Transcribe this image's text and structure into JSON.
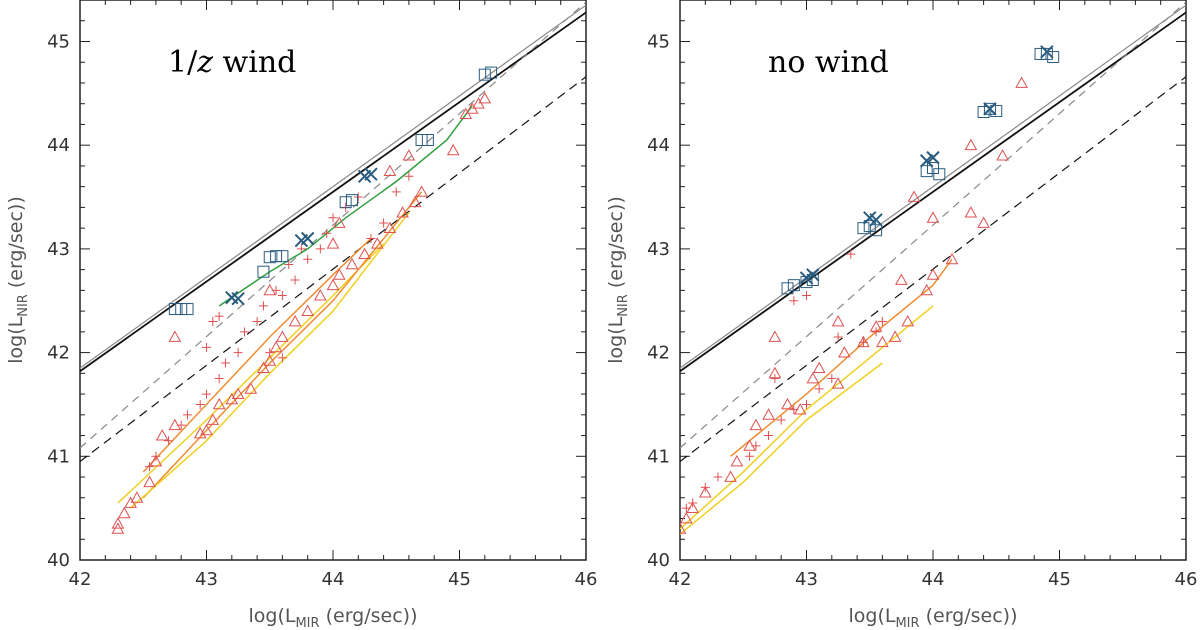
{
  "colors": {
    "frame": "#222222",
    "solid_line": "#111111",
    "solid_line_light": "#888888",
    "dashed_dark": "#111111",
    "dashed_light": "#888888",
    "triangle": "#e05050",
    "plus": "#e05050",
    "square": "#2a5c80",
    "cross": "#2a5c80",
    "orange": "#f08c30",
    "yellow": "#f0d020",
    "green": "#30a040"
  },
  "chart_data": [
    {
      "type": "scatter",
      "title": "1/z wind",
      "title_parts": {
        "prefix": "1/",
        "italic": "z",
        "suffix": " wind"
      },
      "xlabel": {
        "prefix": "log(L",
        "sub": "MIR",
        "suffix": " (erg/sec))"
      },
      "ylabel": {
        "prefix": "log(L",
        "sub": "NIR",
        "suffix": " (erg/sec))"
      },
      "xlim": [
        42,
        46
      ],
      "ylim": [
        40,
        45.4
      ],
      "xticks": [
        "42",
        "43",
        "44",
        "45",
        "46"
      ],
      "yticks": [
        "40",
        "41",
        "42",
        "43",
        "44",
        "45"
      ],
      "reference_lines": [
        {
          "name": "solid-black",
          "style": "solid",
          "color": "solid_line",
          "points": [
            [
              42,
              41.82
            ],
            [
              46,
              45.28
            ]
          ]
        },
        {
          "name": "solid-grey",
          "style": "solid",
          "color": "solid_line_light",
          "points": [
            [
              42,
              41.85
            ],
            [
              46,
              45.35
            ]
          ]
        },
        {
          "name": "dashed-grey",
          "style": "dashed",
          "color": "dashed_light",
          "points": [
            [
              42,
              41.08
            ],
            [
              46,
              45.38
            ]
          ]
        },
        {
          "name": "dashed-black",
          "style": "dashed",
          "color": "dashed_dark",
          "points": [
            [
              42,
              40.95
            ],
            [
              46,
              44.66
            ]
          ]
        }
      ],
      "curves": [
        {
          "name": "orange-upper",
          "color": "orange",
          "points": [
            [
              42.5,
              40.85
            ],
            [
              43.0,
              41.5
            ],
            [
              43.5,
              42.15
            ],
            [
              44.0,
              42.75
            ],
            [
              44.3,
              43.1
            ]
          ]
        },
        {
          "name": "yellow-upper",
          "color": "yellow",
          "points": [
            [
              42.3,
              40.55
            ],
            [
              43.0,
              41.35
            ],
            [
              43.5,
              41.95
            ],
            [
              44.0,
              42.55
            ],
            [
              44.4,
              43.05
            ]
          ]
        },
        {
          "name": "orange-lower",
          "color": "orange",
          "points": [
            [
              42.5,
              40.6
            ],
            [
              43.0,
              41.25
            ],
            [
              43.5,
              41.9
            ],
            [
              44.0,
              42.5
            ],
            [
              44.7,
              43.55
            ]
          ]
        },
        {
          "name": "yellow-lower",
          "color": "yellow",
          "points": [
            [
              42.4,
              40.5
            ],
            [
              43.0,
              41.15
            ],
            [
              43.5,
              41.8
            ],
            [
              44.0,
              42.4
            ],
            [
              44.6,
              43.35
            ]
          ]
        },
        {
          "name": "green",
          "color": "green",
          "points": [
            [
              43.1,
              42.45
            ],
            [
              43.5,
              42.78
            ],
            [
              43.8,
              43.0
            ],
            [
              44.1,
              43.3
            ],
            [
              44.5,
              43.65
            ],
            [
              44.9,
              44.05
            ],
            [
              45.1,
              44.38
            ]
          ]
        }
      ],
      "triangles": [
        [
          42.3,
          40.35
        ],
        [
          42.35,
          40.45
        ],
        [
          42.4,
          40.55
        ],
        [
          42.45,
          40.6
        ],
        [
          42.55,
          40.75
        ],
        [
          42.6,
          40.95
        ],
        [
          42.65,
          41.2
        ],
        [
          42.75,
          41.3
        ],
        [
          42.95,
          41.22
        ],
        [
          43.0,
          41.25
        ],
        [
          43.05,
          41.35
        ],
        [
          43.1,
          41.5
        ],
        [
          43.2,
          41.55
        ],
        [
          43.25,
          41.6
        ],
        [
          43.35,
          41.65
        ],
        [
          43.45,
          41.85
        ],
        [
          43.5,
          41.92
        ],
        [
          43.55,
          42.05
        ],
        [
          43.6,
          42.15
        ],
        [
          43.7,
          42.3
        ],
        [
          43.8,
          42.4
        ],
        [
          43.9,
          42.55
        ],
        [
          44.0,
          42.65
        ],
        [
          44.05,
          42.75
        ],
        [
          44.15,
          42.85
        ],
        [
          44.25,
          42.95
        ],
        [
          44.35,
          43.05
        ],
        [
          44.45,
          43.2
        ],
        [
          44.55,
          43.35
        ],
        [
          44.65,
          43.45
        ],
        [
          44.7,
          43.55
        ],
        [
          44.95,
          43.95
        ],
        [
          45.05,
          44.3
        ],
        [
          45.1,
          44.35
        ],
        [
          45.15,
          44.4
        ],
        [
          45.2,
          44.45
        ],
        [
          44.0,
          43.05
        ],
        [
          44.05,
          43.25
        ],
        [
          43.5,
          42.6
        ],
        [
          44.45,
          43.75
        ],
        [
          44.6,
          43.9
        ],
        [
          42.75,
          42.15
        ],
        [
          42.3,
          40.3
        ]
      ],
      "pluses": [
        [
          42.55,
          40.9
        ],
        [
          42.6,
          41.0
        ],
        [
          42.7,
          41.15
        ],
        [
          42.8,
          41.3
        ],
        [
          42.85,
          41.4
        ],
        [
          42.95,
          41.5
        ],
        [
          43.0,
          41.6
        ],
        [
          43.1,
          41.75
        ],
        [
          43.15,
          41.9
        ],
        [
          43.25,
          42.0
        ],
        [
          43.3,
          42.2
        ],
        [
          43.4,
          42.3
        ],
        [
          43.45,
          42.45
        ],
        [
          43.55,
          42.6
        ],
        [
          43.6,
          42.55
        ],
        [
          43.7,
          42.7
        ],
        [
          43.8,
          42.9
        ],
        [
          43.9,
          43.0
        ],
        [
          43.95,
          43.15
        ],
        [
          44.0,
          43.3
        ],
        [
          44.1,
          43.4
        ],
        [
          44.2,
          43.5
        ],
        [
          44.3,
          43.1
        ],
        [
          44.4,
          43.25
        ],
        [
          44.5,
          43.55
        ],
        [
          44.6,
          43.7
        ],
        [
          43.05,
          42.3
        ],
        [
          43.1,
          42.35
        ],
        [
          43.5,
          42.0
        ],
        [
          43.6,
          41.95
        ],
        [
          43.0,
          42.05
        ],
        [
          43.65,
          42.85
        ],
        [
          43.75,
          43.0
        ]
      ],
      "squares": [
        [
          42.75,
          42.42
        ],
        [
          42.8,
          42.42
        ],
        [
          42.85,
          42.42
        ],
        [
          43.45,
          42.78
        ],
        [
          43.5,
          42.92
        ],
        [
          43.55,
          42.93
        ],
        [
          43.6,
          42.93
        ],
        [
          44.1,
          43.45
        ],
        [
          44.15,
          43.47
        ],
        [
          44.7,
          44.05
        ],
        [
          44.75,
          44.05
        ],
        [
          45.2,
          44.68
        ],
        [
          45.25,
          44.7
        ]
      ],
      "crosses": [
        [
          43.2,
          42.53
        ],
        [
          43.25,
          42.52
        ],
        [
          43.8,
          43.1
        ],
        [
          43.75,
          43.08
        ],
        [
          44.3,
          43.72
        ],
        [
          44.25,
          43.7
        ]
      ]
    },
    {
      "type": "scatter",
      "title": "no wind",
      "title_parts": {
        "prefix": "no wind",
        "italic": "",
        "suffix": ""
      },
      "xlabel": {
        "prefix": "log(L",
        "sub": "MIR",
        "suffix": " (erg/sec))"
      },
      "ylabel": {
        "prefix": "log(L",
        "sub": "NIR",
        "suffix": " (erg/sec))"
      },
      "xlim": [
        42,
        46
      ],
      "ylim": [
        40,
        45.4
      ],
      "xticks": [
        "42",
        "43",
        "44",
        "45",
        "46"
      ],
      "yticks": [
        "40",
        "41",
        "42",
        "43",
        "44",
        "45"
      ],
      "reference_lines": [
        {
          "name": "solid-black",
          "style": "solid",
          "color": "solid_line",
          "points": [
            [
              42,
              41.82
            ],
            [
              46,
              45.28
            ]
          ]
        },
        {
          "name": "solid-grey",
          "style": "solid",
          "color": "solid_line_light",
          "points": [
            [
              42,
              41.85
            ],
            [
              46,
              45.35
            ]
          ]
        },
        {
          "name": "dashed-grey",
          "style": "dashed",
          "color": "dashed_light",
          "points": [
            [
              42,
              41.08
            ],
            [
              46,
              45.38
            ]
          ]
        },
        {
          "name": "dashed-black",
          "style": "dashed",
          "color": "dashed_dark",
          "points": [
            [
              42,
              40.95
            ],
            [
              46,
              44.66
            ]
          ]
        }
      ],
      "curves": [
        {
          "name": "orange-upper",
          "color": "orange",
          "points": [
            [
              42.4,
              41.0
            ],
            [
              43.0,
              41.6
            ],
            [
              43.5,
              42.15
            ],
            [
              44.0,
              42.65
            ],
            [
              44.15,
              42.9
            ]
          ]
        },
        {
          "name": "yellow-upper",
          "color": "yellow",
          "points": [
            [
              42.0,
              40.3
            ],
            [
              42.5,
              40.85
            ],
            [
              43.0,
              41.45
            ],
            [
              43.5,
              41.95
            ],
            [
              44.0,
              42.45
            ]
          ]
        },
        {
          "name": "yellow-lower",
          "color": "yellow",
          "points": [
            [
              42.0,
              40.25
            ],
            [
              42.5,
              40.75
            ],
            [
              43.0,
              41.35
            ],
            [
              43.6,
              41.9
            ]
          ]
        }
      ],
      "triangles": [
        [
          42.0,
          40.3
        ],
        [
          42.05,
          40.4
        ],
        [
          42.1,
          40.5
        ],
        [
          42.2,
          40.65
        ],
        [
          42.4,
          40.8
        ],
        [
          42.45,
          40.95
        ],
        [
          42.55,
          41.1
        ],
        [
          42.6,
          41.3
        ],
        [
          42.7,
          41.4
        ],
        [
          42.75,
          41.8
        ],
        [
          42.85,
          41.5
        ],
        [
          42.95,
          41.45
        ],
        [
          43.05,
          41.75
        ],
        [
          43.1,
          41.85
        ],
        [
          43.25,
          41.7
        ],
        [
          43.3,
          42.0
        ],
        [
          43.45,
          42.1
        ],
        [
          43.55,
          42.25
        ],
        [
          43.6,
          42.1
        ],
        [
          43.7,
          42.15
        ],
        [
          43.75,
          42.7
        ],
        [
          43.8,
          42.3
        ],
        [
          43.95,
          42.6
        ],
        [
          44.0,
          42.75
        ],
        [
          44.15,
          42.9
        ],
        [
          44.3,
          43.35
        ],
        [
          44.4,
          43.25
        ],
        [
          44.55,
          43.9
        ],
        [
          44.7,
          44.6
        ],
        [
          43.85,
          43.5
        ],
        [
          44.0,
          43.3
        ],
        [
          44.3,
          44.0
        ],
        [
          42.75,
          42.15
        ],
        [
          43.25,
          42.3
        ]
      ],
      "pluses": [
        [
          42.05,
          40.5
        ],
        [
          42.1,
          40.55
        ],
        [
          42.2,
          40.7
        ],
        [
          42.3,
          40.8
        ],
        [
          42.55,
          41.0
        ],
        [
          42.6,
          41.1
        ],
        [
          42.7,
          41.2
        ],
        [
          42.8,
          41.35
        ],
        [
          42.9,
          41.45
        ],
        [
          43.0,
          41.5
        ],
        [
          43.1,
          41.65
        ],
        [
          43.2,
          41.75
        ],
        [
          43.25,
          42.15
        ],
        [
          43.35,
          42.95
        ],
        [
          43.45,
          42.1
        ],
        [
          43.55,
          42.2
        ],
        [
          43.6,
          42.3
        ],
        [
          42.9,
          42.5
        ],
        [
          43.0,
          42.55
        ],
        [
          42.75,
          41.75
        ]
      ],
      "squares": [
        [
          42.85,
          42.62
        ],
        [
          42.9,
          42.65
        ],
        [
          43.0,
          42.68
        ],
        [
          43.05,
          42.7
        ],
        [
          43.45,
          43.2
        ],
        [
          43.5,
          43.22
        ],
        [
          43.55,
          43.18
        ],
        [
          43.95,
          43.75
        ],
        [
          44.0,
          43.78
        ],
        [
          44.05,
          43.72
        ],
        [
          44.4,
          44.32
        ],
        [
          44.45,
          44.35
        ],
        [
          44.5,
          44.33
        ],
        [
          44.85,
          44.88
        ],
        [
          44.9,
          44.88
        ],
        [
          44.95,
          44.85
        ]
      ],
      "crosses": [
        [
          43.0,
          42.72
        ],
        [
          43.05,
          42.75
        ],
        [
          43.55,
          43.28
        ],
        [
          43.5,
          43.3
        ],
        [
          43.95,
          43.85
        ],
        [
          44.0,
          43.88
        ],
        [
          44.45,
          44.35
        ],
        [
          44.9,
          44.9
        ]
      ]
    }
  ]
}
